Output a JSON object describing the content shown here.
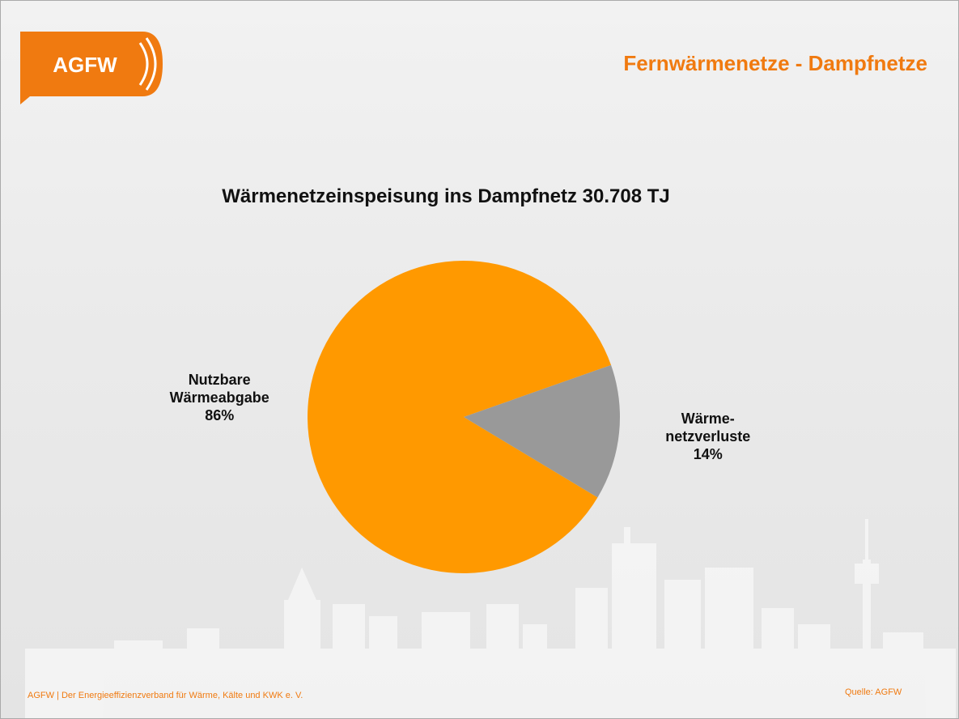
{
  "header": {
    "logo": "AGFW",
    "title": "Fernwärmenetze - Dampfnetze"
  },
  "chart_data": {
    "type": "pie",
    "title": "Wärmenetzeinspeisung ins Dampfnetz 30.708 TJ",
    "categories": [
      "Nutzbare Wärmeabgabe",
      "Wärme-netzverluste"
    ],
    "values": [
      86,
      14
    ],
    "value_labels": [
      "86%",
      "14%"
    ],
    "colors": [
      "#ff9900",
      "#999999"
    ]
  },
  "footer": {
    "left": "AGFW | Der Energieeffizienzverband für Wärme, Kälte und KWK e. V.",
    "source": "Quelle: AGFW"
  }
}
